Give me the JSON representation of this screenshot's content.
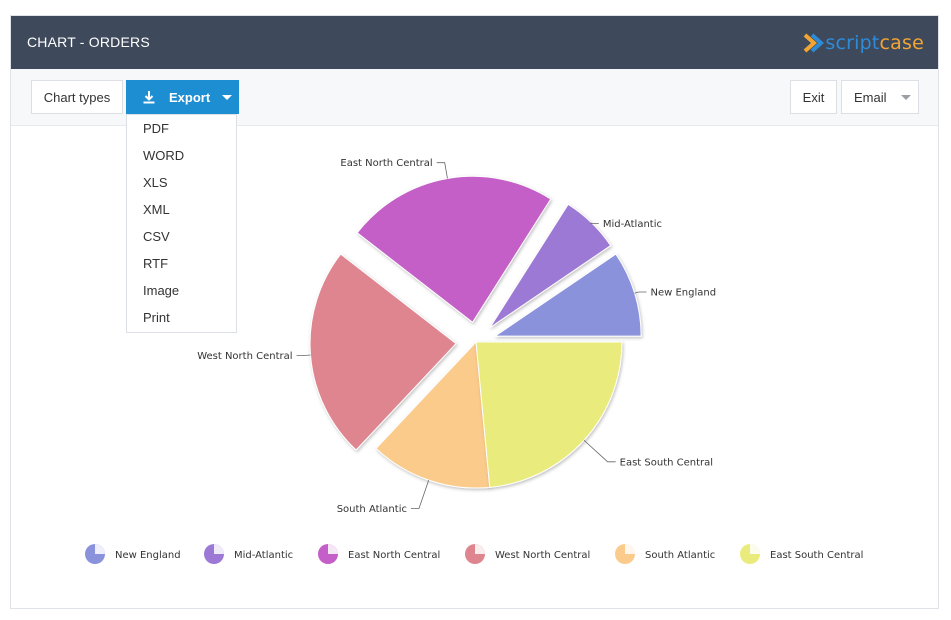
{
  "header": {
    "title": "CHART - ORDERS",
    "logo_a": "script",
    "logo_b": "case"
  },
  "toolbar": {
    "chart_types_label": "Chart types",
    "export_label": "Export",
    "exit_label": "Exit",
    "email_label": "Email"
  },
  "export_menu": {
    "items": [
      "PDF",
      "WORD",
      "XLS",
      "XML",
      "CSV",
      "RTF",
      "Image",
      "Print"
    ]
  },
  "colors": {
    "header": "#3e4a5b",
    "accent": "#1e8ed2"
  },
  "chart_data": {
    "type": "pie",
    "title": "",
    "slices": [
      {
        "label": "New England",
        "value": 9.5,
        "color": "#8b92dc"
      },
      {
        "label": "Mid-Atlantic",
        "value": 6.5,
        "color": "#9d79d6"
      },
      {
        "label": "East North Central",
        "value": 23.5,
        "color": "#c45ec8"
      },
      {
        "label": "West North Central",
        "value": 23.5,
        "color": "#df8590"
      },
      {
        "label": "South Atlantic",
        "value": 13.5,
        "color": "#fbcb8b"
      },
      {
        "label": "East South Central",
        "value": 23.5,
        "color": "#e9ec7d"
      }
    ],
    "legend_position": "bottom"
  }
}
